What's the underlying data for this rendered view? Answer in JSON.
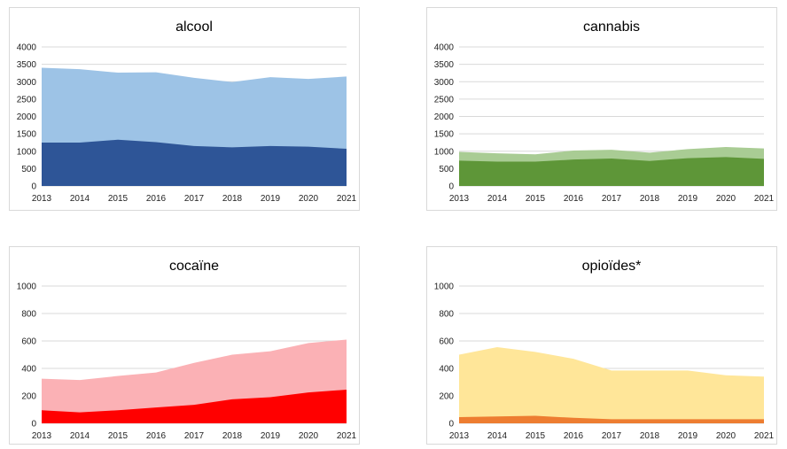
{
  "chart_data": [
    {
      "type": "area",
      "title": "alcool",
      "x": [
        2013,
        2014,
        2015,
        2016,
        2017,
        2018,
        2019,
        2020,
        2021
      ],
      "ylim": [
        0,
        4000
      ],
      "yticks": [
        0,
        500,
        1000,
        1500,
        2000,
        2500,
        3000,
        3500,
        4000
      ],
      "grid": true,
      "legend": "none",
      "series": [
        {
          "color": "#2e5597",
          "values": [
            1250,
            1250,
            1330,
            1260,
            1150,
            1110,
            1150,
            1130,
            1070
          ]
        },
        {
          "color": "#9dc3e6",
          "values": [
            3400,
            3360,
            3260,
            3270,
            3110,
            2990,
            3130,
            3080,
            3150
          ]
        }
      ]
    },
    {
      "type": "area",
      "title": "cannabis",
      "x": [
        2013,
        2014,
        2015,
        2016,
        2017,
        2018,
        2019,
        2020,
        2021
      ],
      "ylim": [
        0,
        4000
      ],
      "yticks": [
        0,
        500,
        1000,
        1500,
        2000,
        2500,
        3000,
        3500,
        4000
      ],
      "grid": true,
      "legend": "none",
      "series": [
        {
          "color": "#5e9638",
          "values": [
            730,
            700,
            700,
            760,
            790,
            720,
            800,
            830,
            780
          ]
        },
        {
          "color": "#a9cc94",
          "values": [
            980,
            940,
            910,
            1020,
            1040,
            960,
            1060,
            1120,
            1080
          ]
        }
      ]
    },
    {
      "type": "area",
      "title": "cocaïne",
      "x": [
        2013,
        2014,
        2015,
        2016,
        2017,
        2018,
        2019,
        2020,
        2021
      ],
      "ylim": [
        0,
        1000
      ],
      "yticks": [
        0,
        200,
        400,
        600,
        800,
        1000
      ],
      "grid": true,
      "legend": "none",
      "series": [
        {
          "color": "#ff0000",
          "values": [
            95,
            80,
            95,
            115,
            135,
            175,
            190,
            225,
            245
          ]
        },
        {
          "color": "#fbb1b5",
          "values": [
            325,
            315,
            345,
            370,
            440,
            500,
            525,
            585,
            610
          ]
        }
      ]
    },
    {
      "type": "area",
      "title": "opioïdes*",
      "x": [
        2013,
        2014,
        2015,
        2016,
        2017,
        2018,
        2019,
        2020,
        2021
      ],
      "ylim": [
        0,
        1000
      ],
      "yticks": [
        0,
        200,
        400,
        600,
        800,
        1000
      ],
      "grid": true,
      "legend": "none",
      "series": [
        {
          "color": "#ed7d31",
          "values": [
            45,
            50,
            55,
            40,
            30,
            30,
            30,
            30,
            30
          ]
        },
        {
          "color": "#ffe699",
          "values": [
            500,
            555,
            520,
            470,
            385,
            385,
            385,
            350,
            340
          ]
        }
      ]
    }
  ]
}
